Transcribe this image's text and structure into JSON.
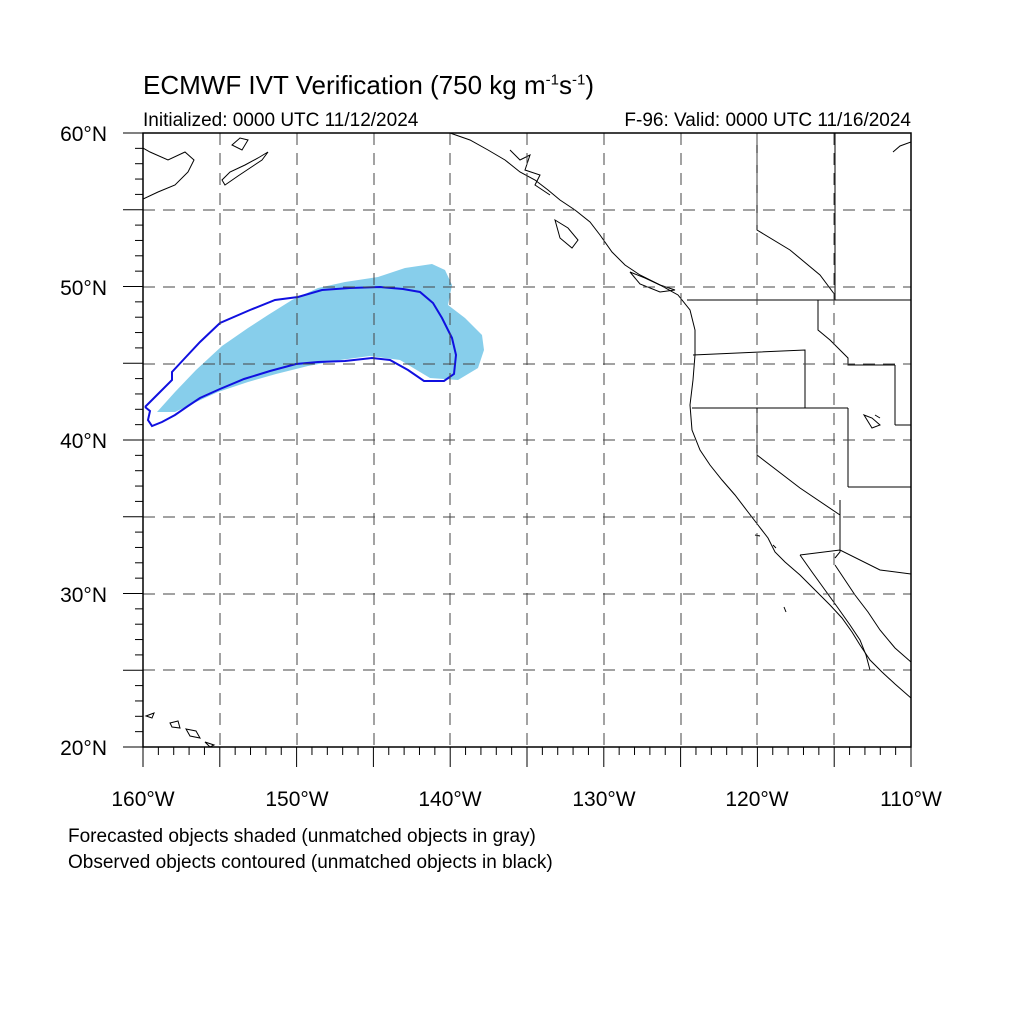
{
  "title": {
    "text": "ECMWF IVT Verification (750 kg m",
    "sup1": "-1",
    "mid": "s",
    "sup2": "-1",
    "end": ")"
  },
  "subtitle_left": "Initialized: 0000 UTC 11/12/2024",
  "subtitle_right": "F-96: Valid: 0000 UTC 11/16/2024",
  "lat_labels": [
    "60°N",
    "50°N",
    "40°N",
    "30°N",
    "20°N"
  ],
  "lon_labels": [
    "160°W",
    "150°W",
    "140°W",
    "130°W",
    "120°W",
    "110°W"
  ],
  "legend": {
    "forecast_note": "Forecasted objects shaded (unmatched objects in gray)",
    "observed_note": "Observed objects contoured (unmatched objects in black)"
  },
  "colors": {
    "forecast_fill": "#87ceeb",
    "observed_contour": "#1010e0",
    "coast": "#000000",
    "grid": "#444444"
  },
  "map_extent": {
    "lon_min": -160,
    "lon_max": -110,
    "lat_min": 20,
    "lat_max": 60
  }
}
